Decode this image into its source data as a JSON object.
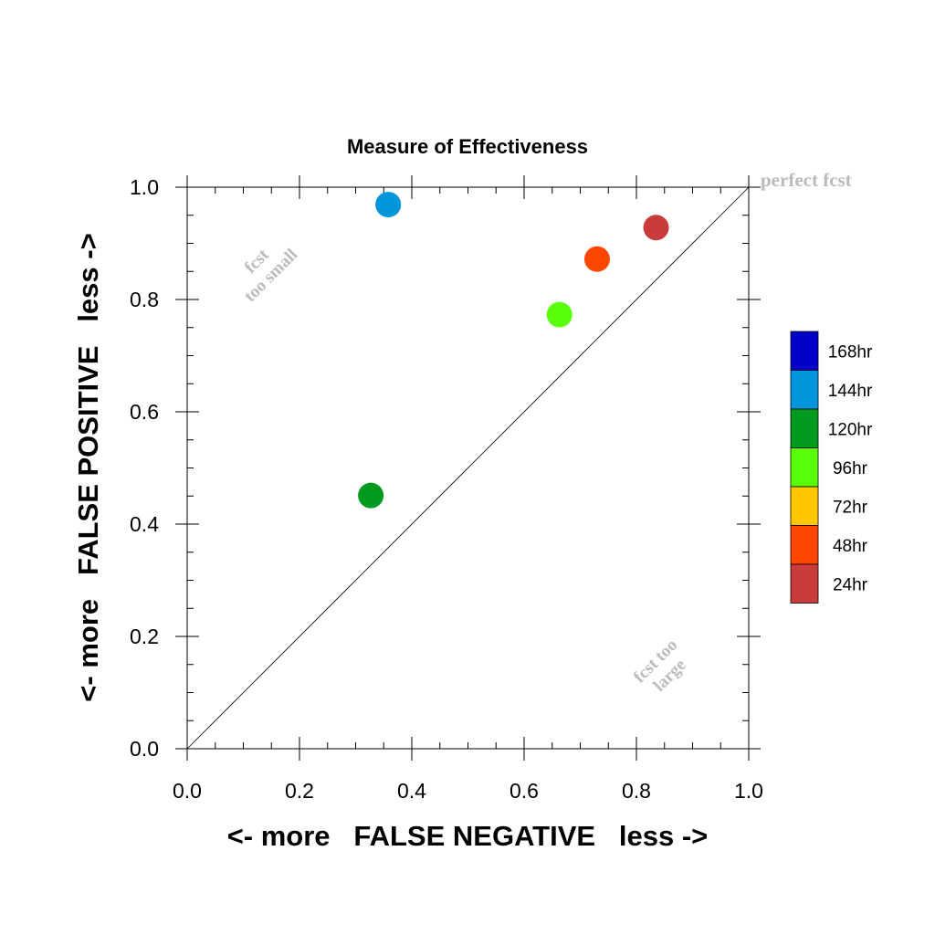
{
  "chart_data": {
    "type": "scatter",
    "title": "Measure of Effectiveness",
    "xlabel": "<- more   FALSE NEGATIVE   less ->",
    "ylabel": "<- more   FALSE POSITIVE   less ->",
    "xlim": [
      0.0,
      1.0
    ],
    "ylim": [
      0.0,
      1.0
    ],
    "x_ticks": [
      "0.0",
      "0.2",
      "0.4",
      "0.6",
      "0.8",
      "1.0"
    ],
    "y_ticks": [
      "0.0",
      "0.2",
      "0.4",
      "0.6",
      "0.8",
      "1.0"
    ],
    "grid": false,
    "reference_line": {
      "from": [
        0.0,
        0.0
      ],
      "to": [
        1.0,
        1.0
      ]
    },
    "annotations": {
      "perfect": "perfect fcst",
      "too_small_line1": "fcst",
      "too_small_line2": "too small",
      "too_large_line1": "fcst too",
      "too_large_line2": "large"
    },
    "legend": {
      "position": "right",
      "entries": [
        {
          "label": "168hr",
          "color": "#0000c8"
        },
        {
          "label": "144hr",
          "color": "#0096dc"
        },
        {
          "label": "120hr",
          "color": "#009a1e"
        },
        {
          "label": "96hr",
          "color": "#5aff0a"
        },
        {
          "label": "72hr",
          "color": "#ffc800"
        },
        {
          "label": "48hr",
          "color": "#ff4600"
        },
        {
          "label": "24hr",
          "color": "#c83c3c"
        }
      ]
    },
    "series": [
      {
        "name": "24hr",
        "color": "#c83c3c",
        "x": 0.835,
        "y": 0.928
      },
      {
        "name": "48hr",
        "color": "#ff4600",
        "x": 0.73,
        "y": 0.872
      },
      {
        "name": "96hr",
        "color": "#5aff0a",
        "x": 0.663,
        "y": 0.773
      },
      {
        "name": "120hr",
        "color": "#009a1e",
        "x": 0.327,
        "y": 0.451
      },
      {
        "name": "144hr",
        "color": "#0096dc",
        "x": 0.358,
        "y": 0.969
      }
    ]
  }
}
